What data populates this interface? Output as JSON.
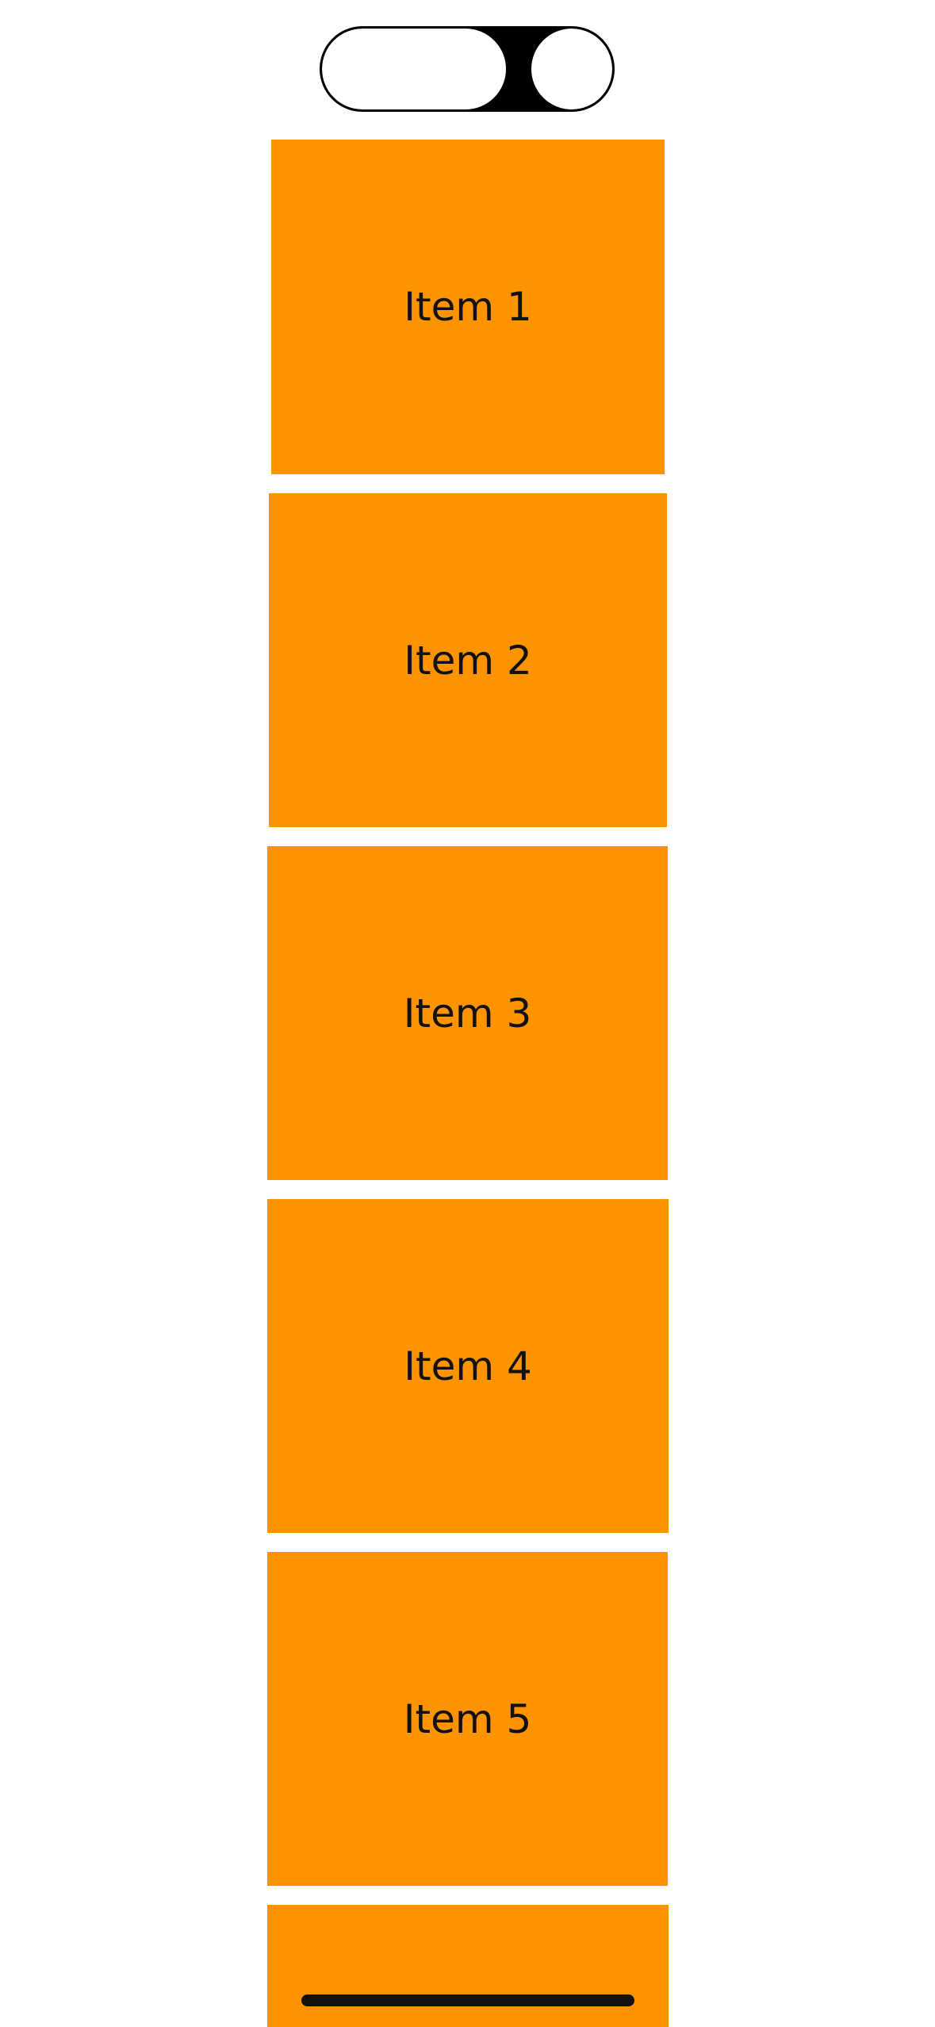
{
  "accent_color": "#fe9300",
  "items": [
    {
      "label": "Item 1"
    },
    {
      "label": "Item 2"
    },
    {
      "label": "Item 3"
    },
    {
      "label": "Item 4"
    },
    {
      "label": "Item 5"
    },
    {
      "label": ""
    }
  ]
}
